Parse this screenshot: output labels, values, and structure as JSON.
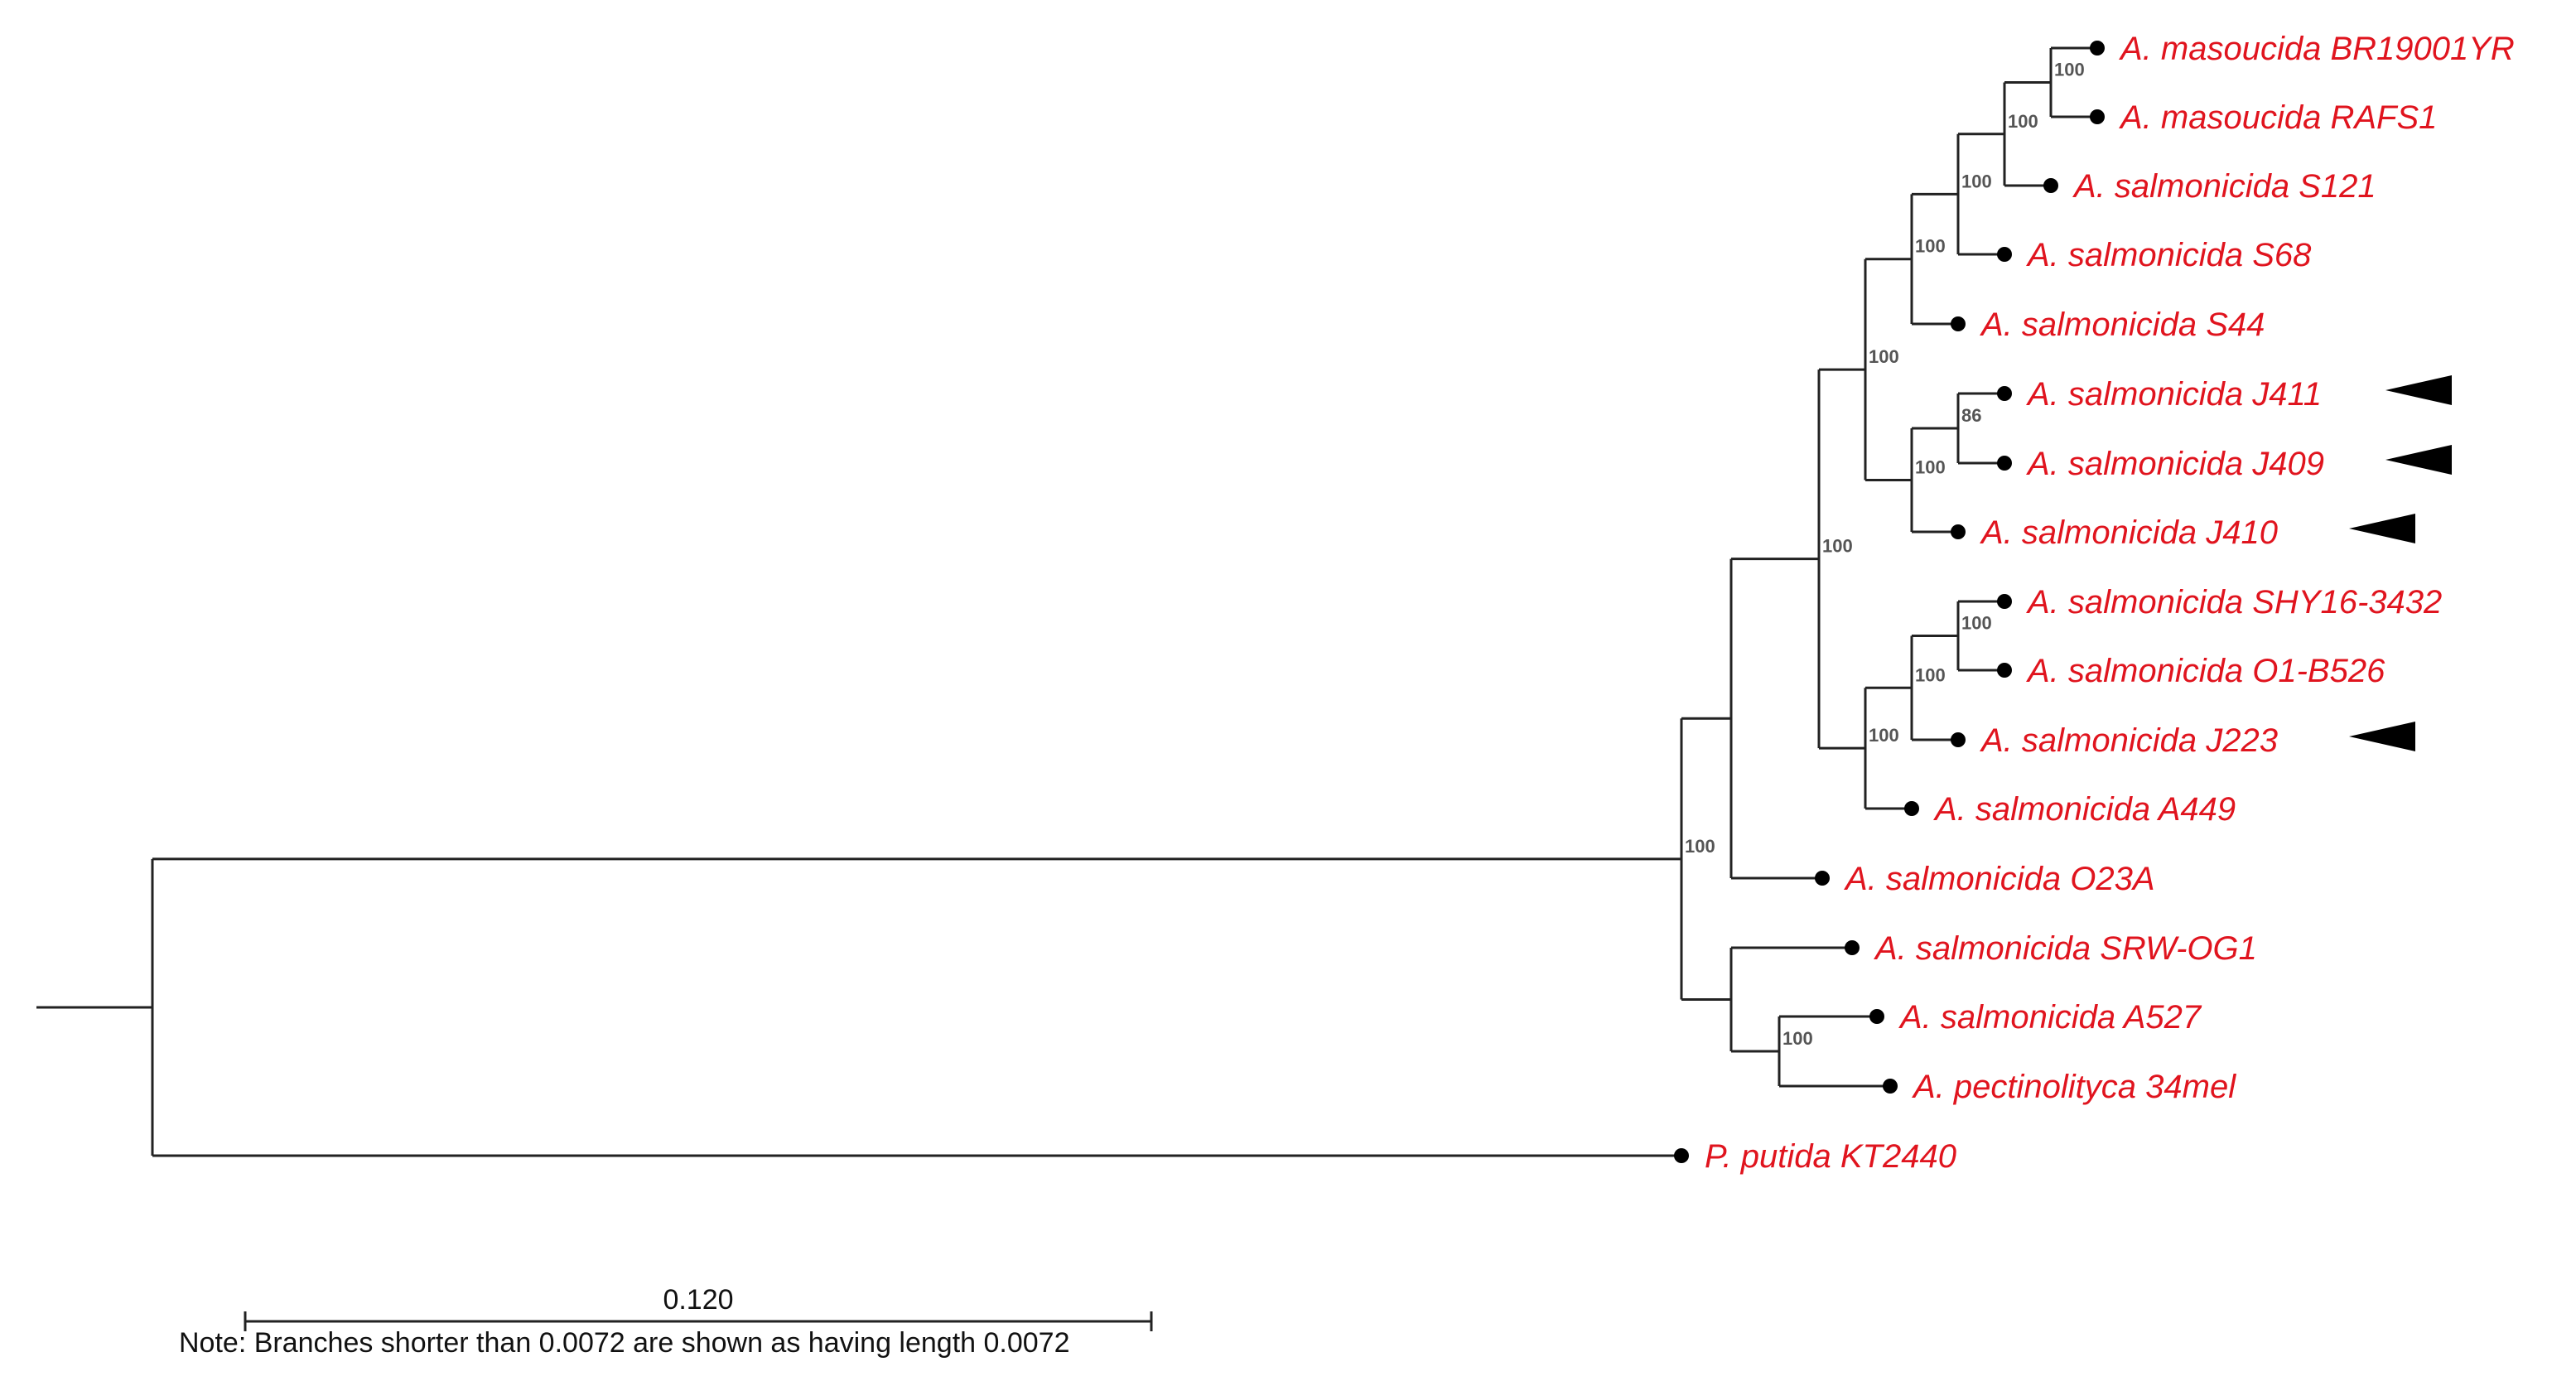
{
  "tree": {
    "taxa": [
      {
        "id": "masBR",
        "label": "A. masoucida BR19001YR",
        "marked": false
      },
      {
        "id": "masRAFS",
        "label": "A. masoucida RAFS1",
        "marked": false
      },
      {
        "id": "S121",
        "label": "A. salmonicida S121",
        "marked": false
      },
      {
        "id": "S68",
        "label": "A. salmonicida S68",
        "marked": false
      },
      {
        "id": "S44",
        "label": "A. salmonicida S44",
        "marked": false
      },
      {
        "id": "J411",
        "label": "A. salmonicida J411",
        "marked": true
      },
      {
        "id": "J409",
        "label": "A. salmonicida J409",
        "marked": true
      },
      {
        "id": "J410",
        "label": "A. salmonicida J410",
        "marked": true
      },
      {
        "id": "SHY",
        "label": "A. salmonicida SHY16-3432",
        "marked": false
      },
      {
        "id": "O1B",
        "label": "A. salmonicida O1-B526",
        "marked": false
      },
      {
        "id": "J223",
        "label": "A. salmonicida J223",
        "marked": true
      },
      {
        "id": "A449",
        "label": "A. salmonicida A449",
        "marked": false
      },
      {
        "id": "O23A",
        "label": "A. salmonicida O23A",
        "marked": false
      },
      {
        "id": "SRW",
        "label": "A. salmonicida SRW-OG1",
        "marked": false
      },
      {
        "id": "A527",
        "label": "A. salmonicida A527",
        "marked": false
      },
      {
        "id": "pect",
        "label": "A. pectinolityca 34mel",
        "marked": false
      },
      {
        "id": "putida",
        "label": "P. putida KT2440",
        "marked": false
      }
    ],
    "bootstrap": [
      {
        "node": "n1",
        "value": "100"
      },
      {
        "node": "n2",
        "value": "100"
      },
      {
        "node": "n3",
        "value": "100"
      },
      {
        "node": "n4",
        "value": "100"
      },
      {
        "node": "n5",
        "value": "100"
      },
      {
        "node": "n6",
        "value": "100"
      },
      {
        "node": "n7",
        "value": "86"
      },
      {
        "node": "n8",
        "value": "100"
      },
      {
        "node": "n9",
        "value": "100"
      },
      {
        "node": "n10",
        "value": "100"
      },
      {
        "node": "n11",
        "value": "100"
      },
      {
        "node": "n12",
        "value": "100"
      },
      {
        "node": "n13",
        "value": "100"
      }
    ],
    "label_color": "#e0141e",
    "scale": {
      "value": "0.120"
    },
    "note": "Note: Branches shorter than 0.0072 are shown as having length 0.0072"
  }
}
